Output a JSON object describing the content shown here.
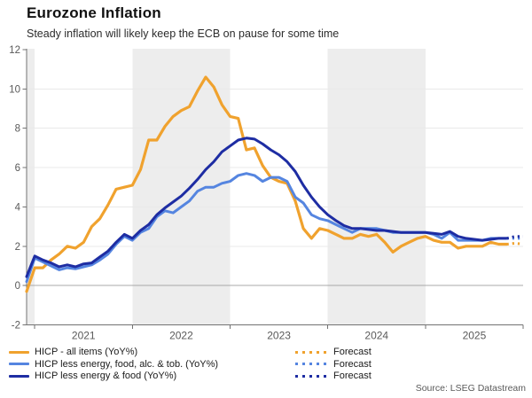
{
  "header": {
    "title": "Eurozone Inflation",
    "subtitle": "Steady inflation will likely keep the ECB on pause for some time"
  },
  "source": "Source: LSEG Datastream",
  "legend": {
    "rows": [
      {
        "label": "HICP - all items (YoY%)",
        "forecast_label": "Forecast",
        "color": "#F0A22E"
      },
      {
        "label": "HICP less energy, food, alc. & tob. (YoY%)",
        "forecast_label": "Forecast",
        "color": "#5585E0"
      },
      {
        "label": "HICP less energy & food (YoY%)",
        "forecast_label": "Forecast",
        "color": "#1E2DA3"
      }
    ]
  },
  "chart_data": {
    "type": "line",
    "title": "Eurozone Inflation",
    "subtitle": "Steady inflation will likely keep the ECB on pause for some time",
    "x_start": "2020-12",
    "x_end": "2026-01",
    "x_tick_labels": [
      "2021",
      "2022",
      "2023",
      "2024",
      "2025"
    ],
    "y_ticks": [
      -2,
      0,
      2,
      4,
      6,
      8,
      10,
      12
    ],
    "ylim": [
      -2,
      12
    ],
    "grid": "horizontal-light",
    "legend_position": "bottom",
    "shaded_years": [
      2020,
      2022,
      2024
    ],
    "band_color": "#EDEDED",
    "grid_color": "#E9E9E9",
    "zero_line_color": "#A8A8A8",
    "axis_color": "#737373",
    "tick_label_color": "#595959",
    "series": [
      {
        "name": "HICP - all items (YoY%)",
        "color": "#F0A22E",
        "style": "solid",
        "start_month": "2020-12",
        "values": [
          -0.3,
          0.9,
          0.9,
          1.3,
          1.6,
          2.0,
          1.9,
          2.2,
          3.0,
          3.4,
          4.1,
          4.9,
          5.0,
          5.1,
          5.9,
          7.4,
          7.4,
          8.1,
          8.6,
          8.9,
          9.1,
          9.9,
          10.6,
          10.1,
          9.2,
          8.6,
          8.5,
          6.9,
          7.0,
          6.1,
          5.5,
          5.3,
          5.2,
          4.3,
          2.9,
          2.4,
          2.9,
          2.8,
          2.6,
          2.4,
          2.4,
          2.6,
          2.5,
          2.6,
          2.2,
          1.7,
          2.0,
          2.2,
          2.4,
          2.5,
          2.3,
          2.2,
          2.2,
          1.9,
          2.0,
          2.0,
          2.0,
          2.2,
          2.1,
          2.1
        ]
      },
      {
        "name": "HICP less energy, food, alc. & tob. (YoY%)",
        "color": "#5585E0",
        "style": "solid",
        "start_month": "2020-12",
        "values": [
          0.2,
          1.4,
          1.2,
          1.0,
          0.8,
          0.9,
          0.85,
          0.95,
          1.05,
          1.3,
          1.6,
          2.1,
          2.5,
          2.3,
          2.7,
          2.9,
          3.5,
          3.8,
          3.7,
          4.0,
          4.3,
          4.8,
          5.0,
          5.0,
          5.2,
          5.3,
          5.6,
          5.7,
          5.6,
          5.3,
          5.5,
          5.5,
          5.3,
          4.5,
          4.2,
          3.6,
          3.4,
          3.3,
          3.1,
          2.9,
          2.7,
          2.9,
          2.9,
          2.9,
          2.8,
          2.7,
          2.7,
          2.7,
          2.7,
          2.7,
          2.6,
          2.4,
          2.7,
          2.3,
          2.3,
          2.3,
          2.3,
          2.4,
          2.4,
          2.4
        ]
      },
      {
        "name": "HICP less energy & food (YoY%)",
        "color": "#1E2DA3",
        "style": "solid",
        "start_month": "2020-12",
        "values": [
          0.45,
          1.5,
          1.3,
          1.15,
          0.95,
          1.05,
          0.95,
          1.1,
          1.15,
          1.45,
          1.75,
          2.2,
          2.6,
          2.4,
          2.8,
          3.1,
          3.6,
          3.95,
          4.25,
          4.55,
          4.95,
          5.4,
          5.9,
          6.3,
          6.8,
          7.1,
          7.4,
          7.5,
          7.45,
          7.2,
          6.9,
          6.65,
          6.3,
          5.8,
          5.1,
          4.5,
          4.0,
          3.6,
          3.3,
          3.05,
          2.9,
          2.9,
          2.85,
          2.8,
          2.8,
          2.75,
          2.7,
          2.7,
          2.7,
          2.7,
          2.65,
          2.6,
          2.75,
          2.5,
          2.4,
          2.35,
          2.3,
          2.35,
          2.4,
          2.4
        ]
      }
    ],
    "forecast_series": [
      {
        "name": "Forecast",
        "of": "HICP - all items (YoY%)",
        "color": "#F0A22E",
        "style": "dotted",
        "start_index": 59,
        "values": [
          2.1,
          2.15,
          2.1
        ]
      },
      {
        "name": "Forecast",
        "of": "HICP less energy, food, alc. & tob. (YoY%)",
        "color": "#5585E0",
        "style": "dotted",
        "start_index": 59,
        "values": [
          2.4,
          2.4,
          2.4
        ]
      },
      {
        "name": "Forecast",
        "of": "HICP less energy & food (YoY%)",
        "color": "#1E2DA3",
        "style": "dotted",
        "start_index": 59,
        "values": [
          2.4,
          2.5,
          2.5
        ]
      }
    ]
  }
}
